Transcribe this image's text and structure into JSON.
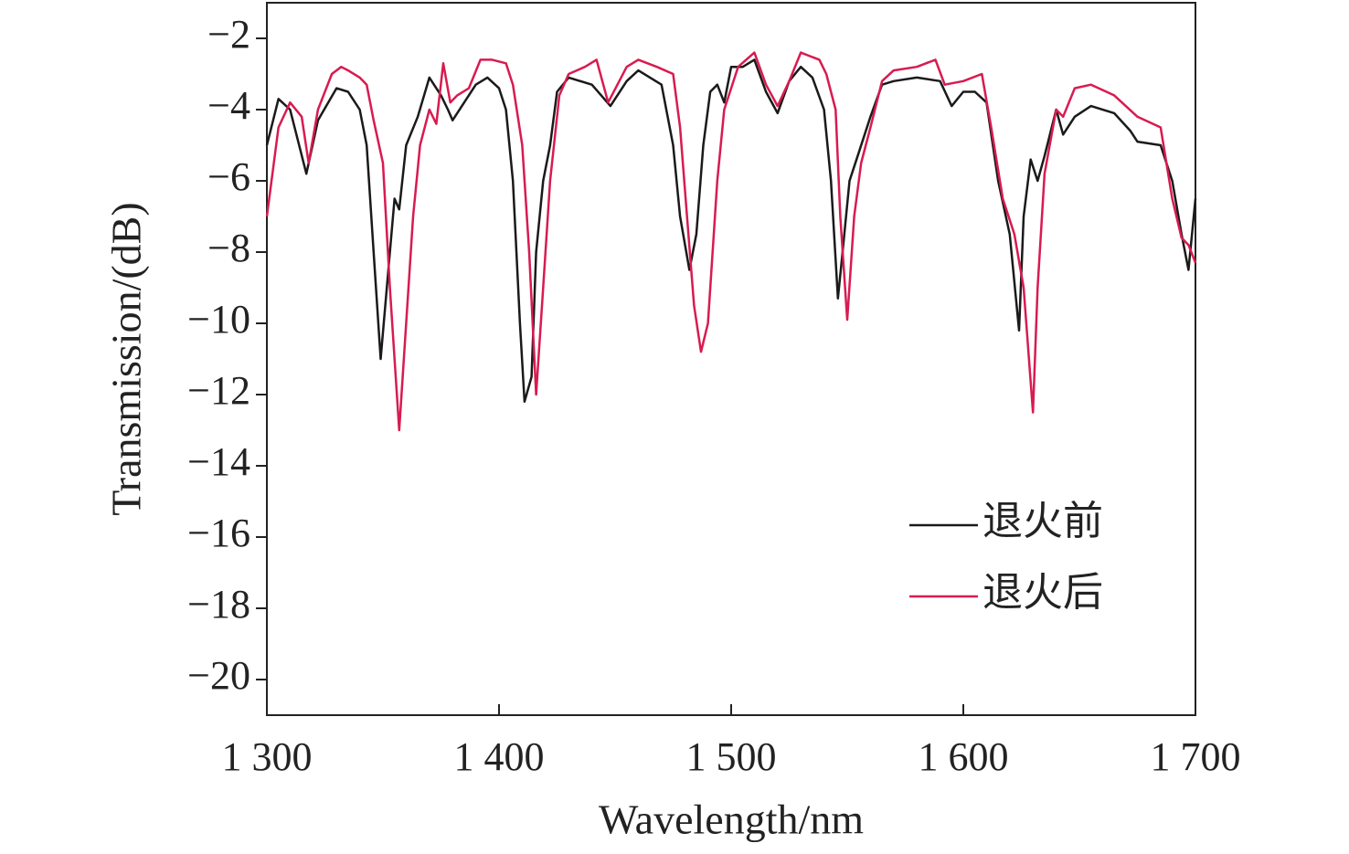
{
  "chart_data": {
    "type": "line",
    "x_label": "Wavelength/nm",
    "y_label": "Transmission/(dB)",
    "xlim": [
      1300,
      1700
    ],
    "ylim": [
      -21,
      -1
    ],
    "xticks": [
      {
        "value": 1300,
        "label": "1 300"
      },
      {
        "value": 1400,
        "label": "1 400"
      },
      {
        "value": 1500,
        "label": "1 500"
      },
      {
        "value": 1600,
        "label": "1 600"
      },
      {
        "value": 1700,
        "label": "1 700"
      }
    ],
    "yticks": [
      {
        "value": -2,
        "label": "−2"
      },
      {
        "value": -4,
        "label": "−4"
      },
      {
        "value": -6,
        "label": "−6"
      },
      {
        "value": -8,
        "label": "−8"
      },
      {
        "value": -10,
        "label": "−10"
      },
      {
        "value": -12,
        "label": "−12"
      },
      {
        "value": -14,
        "label": "−14"
      },
      {
        "value": -16,
        "label": "−16"
      },
      {
        "value": -18,
        "label": "−18"
      },
      {
        "value": -20,
        "label": "−20"
      }
    ],
    "legend": "lower right",
    "series": [
      {
        "name": "退火前",
        "color": "#1a1a1a",
        "x": [
          1300,
          1305,
          1310,
          1317,
          1322,
          1330,
          1335,
          1340,
          1343,
          1346,
          1349,
          1353,
          1355,
          1357,
          1360,
          1365,
          1370,
          1375,
          1378,
          1380,
          1385,
          1390,
          1395,
          1400,
          1403,
          1406,
          1409,
          1411,
          1414,
          1416,
          1419,
          1422,
          1425,
          1430,
          1440,
          1448,
          1455,
          1460,
          1470,
          1475,
          1478,
          1482,
          1485,
          1488,
          1491,
          1494,
          1497,
          1500,
          1505,
          1510,
          1515,
          1520,
          1525,
          1530,
          1535,
          1540,
          1543,
          1546,
          1548,
          1551,
          1555,
          1560,
          1565,
          1570,
          1580,
          1590,
          1595,
          1600,
          1605,
          1610,
          1615,
          1620,
          1624,
          1626,
          1629,
          1632,
          1635,
          1640,
          1643,
          1648,
          1655,
          1665,
          1672,
          1675,
          1685,
          1690,
          1694,
          1697,
          1700
        ],
        "values": [
          -5,
          -3.7,
          -4,
          -5.8,
          -4.3,
          -3.4,
          -3.5,
          -4,
          -5,
          -8,
          -11,
          -8,
          -6.5,
          -6.8,
          -5,
          -4.2,
          -3.1,
          -3.6,
          -4,
          -4.3,
          -3.8,
          -3.3,
          -3.1,
          -3.4,
          -4,
          -6,
          -10,
          -12.2,
          -11.5,
          -8,
          -6,
          -5,
          -3.5,
          -3.1,
          -3.3,
          -3.9,
          -3.2,
          -2.9,
          -3.3,
          -5,
          -7,
          -8.5,
          -7.5,
          -5,
          -3.5,
          -3.3,
          -3.8,
          -2.8,
          -2.8,
          -2.6,
          -3.5,
          -4.1,
          -3.2,
          -2.8,
          -3.1,
          -4,
          -6,
          -9.3,
          -8,
          -6,
          -5.2,
          -4.2,
          -3.3,
          -3.2,
          -3.1,
          -3.2,
          -3.9,
          -3.5,
          -3.5,
          -3.8,
          -6,
          -7.5,
          -10.2,
          -7,
          -5.4,
          -6,
          -5.3,
          -4,
          -4.7,
          -4.2,
          -3.9,
          -4.1,
          -4.6,
          -4.9,
          -5,
          -6,
          -7.5,
          -8.5,
          -6.5
        ]
      },
      {
        "name": "退火后",
        "color": "#d81b50",
        "x": [
          1300,
          1305,
          1310,
          1315,
          1318,
          1322,
          1328,
          1332,
          1335,
          1340,
          1343,
          1346,
          1350,
          1353,
          1357,
          1360,
          1363,
          1366,
          1370,
          1373,
          1376,
          1379,
          1382,
          1387,
          1392,
          1397,
          1403,
          1406,
          1410,
          1413,
          1416,
          1419,
          1422,
          1426,
          1430,
          1437,
          1442,
          1447,
          1455,
          1460,
          1468,
          1475,
          1478,
          1481,
          1484,
          1487,
          1490,
          1494,
          1497,
          1503,
          1510,
          1515,
          1520,
          1525,
          1530,
          1538,
          1541,
          1545,
          1547,
          1550,
          1553,
          1556,
          1560,
          1565,
          1570,
          1580,
          1588,
          1592,
          1600,
          1608,
          1612,
          1617,
          1622,
          1626,
          1630,
          1632,
          1635,
          1640,
          1643,
          1648,
          1655,
          1665,
          1675,
          1685,
          1690,
          1694,
          1697,
          1700
        ],
        "values": [
          -7,
          -4.5,
          -3.8,
          -4.2,
          -5.5,
          -4,
          -3,
          -2.8,
          -2.9,
          -3.1,
          -3.3,
          -4.3,
          -5.5,
          -9,
          -13,
          -10,
          -7,
          -5,
          -4,
          -4.4,
          -2.7,
          -3.8,
          -3.6,
          -3.4,
          -2.6,
          -2.6,
          -2.7,
          -3.3,
          -5,
          -8,
          -12,
          -9,
          -6,
          -3.6,
          -3,
          -2.8,
          -2.6,
          -3.8,
          -2.8,
          -2.6,
          -2.8,
          -3,
          -4.5,
          -7,
          -9.5,
          -10.8,
          -10,
          -6,
          -4,
          -2.8,
          -2.4,
          -3.3,
          -3.9,
          -3.2,
          -2.4,
          -2.6,
          -3,
          -4,
          -7,
          -9.9,
          -7,
          -5.5,
          -4.5,
          -3.2,
          -2.9,
          -2.8,
          -2.6,
          -3.3,
          -3.2,
          -3,
          -4.5,
          -6.5,
          -7.5,
          -9,
          -12.5,
          -9,
          -5.8,
          -4,
          -4.2,
          -3.4,
          -3.3,
          -3.6,
          -4.2,
          -4.5,
          -6.5,
          -7.6,
          -7.8,
          -8.3
        ]
      }
    ]
  }
}
